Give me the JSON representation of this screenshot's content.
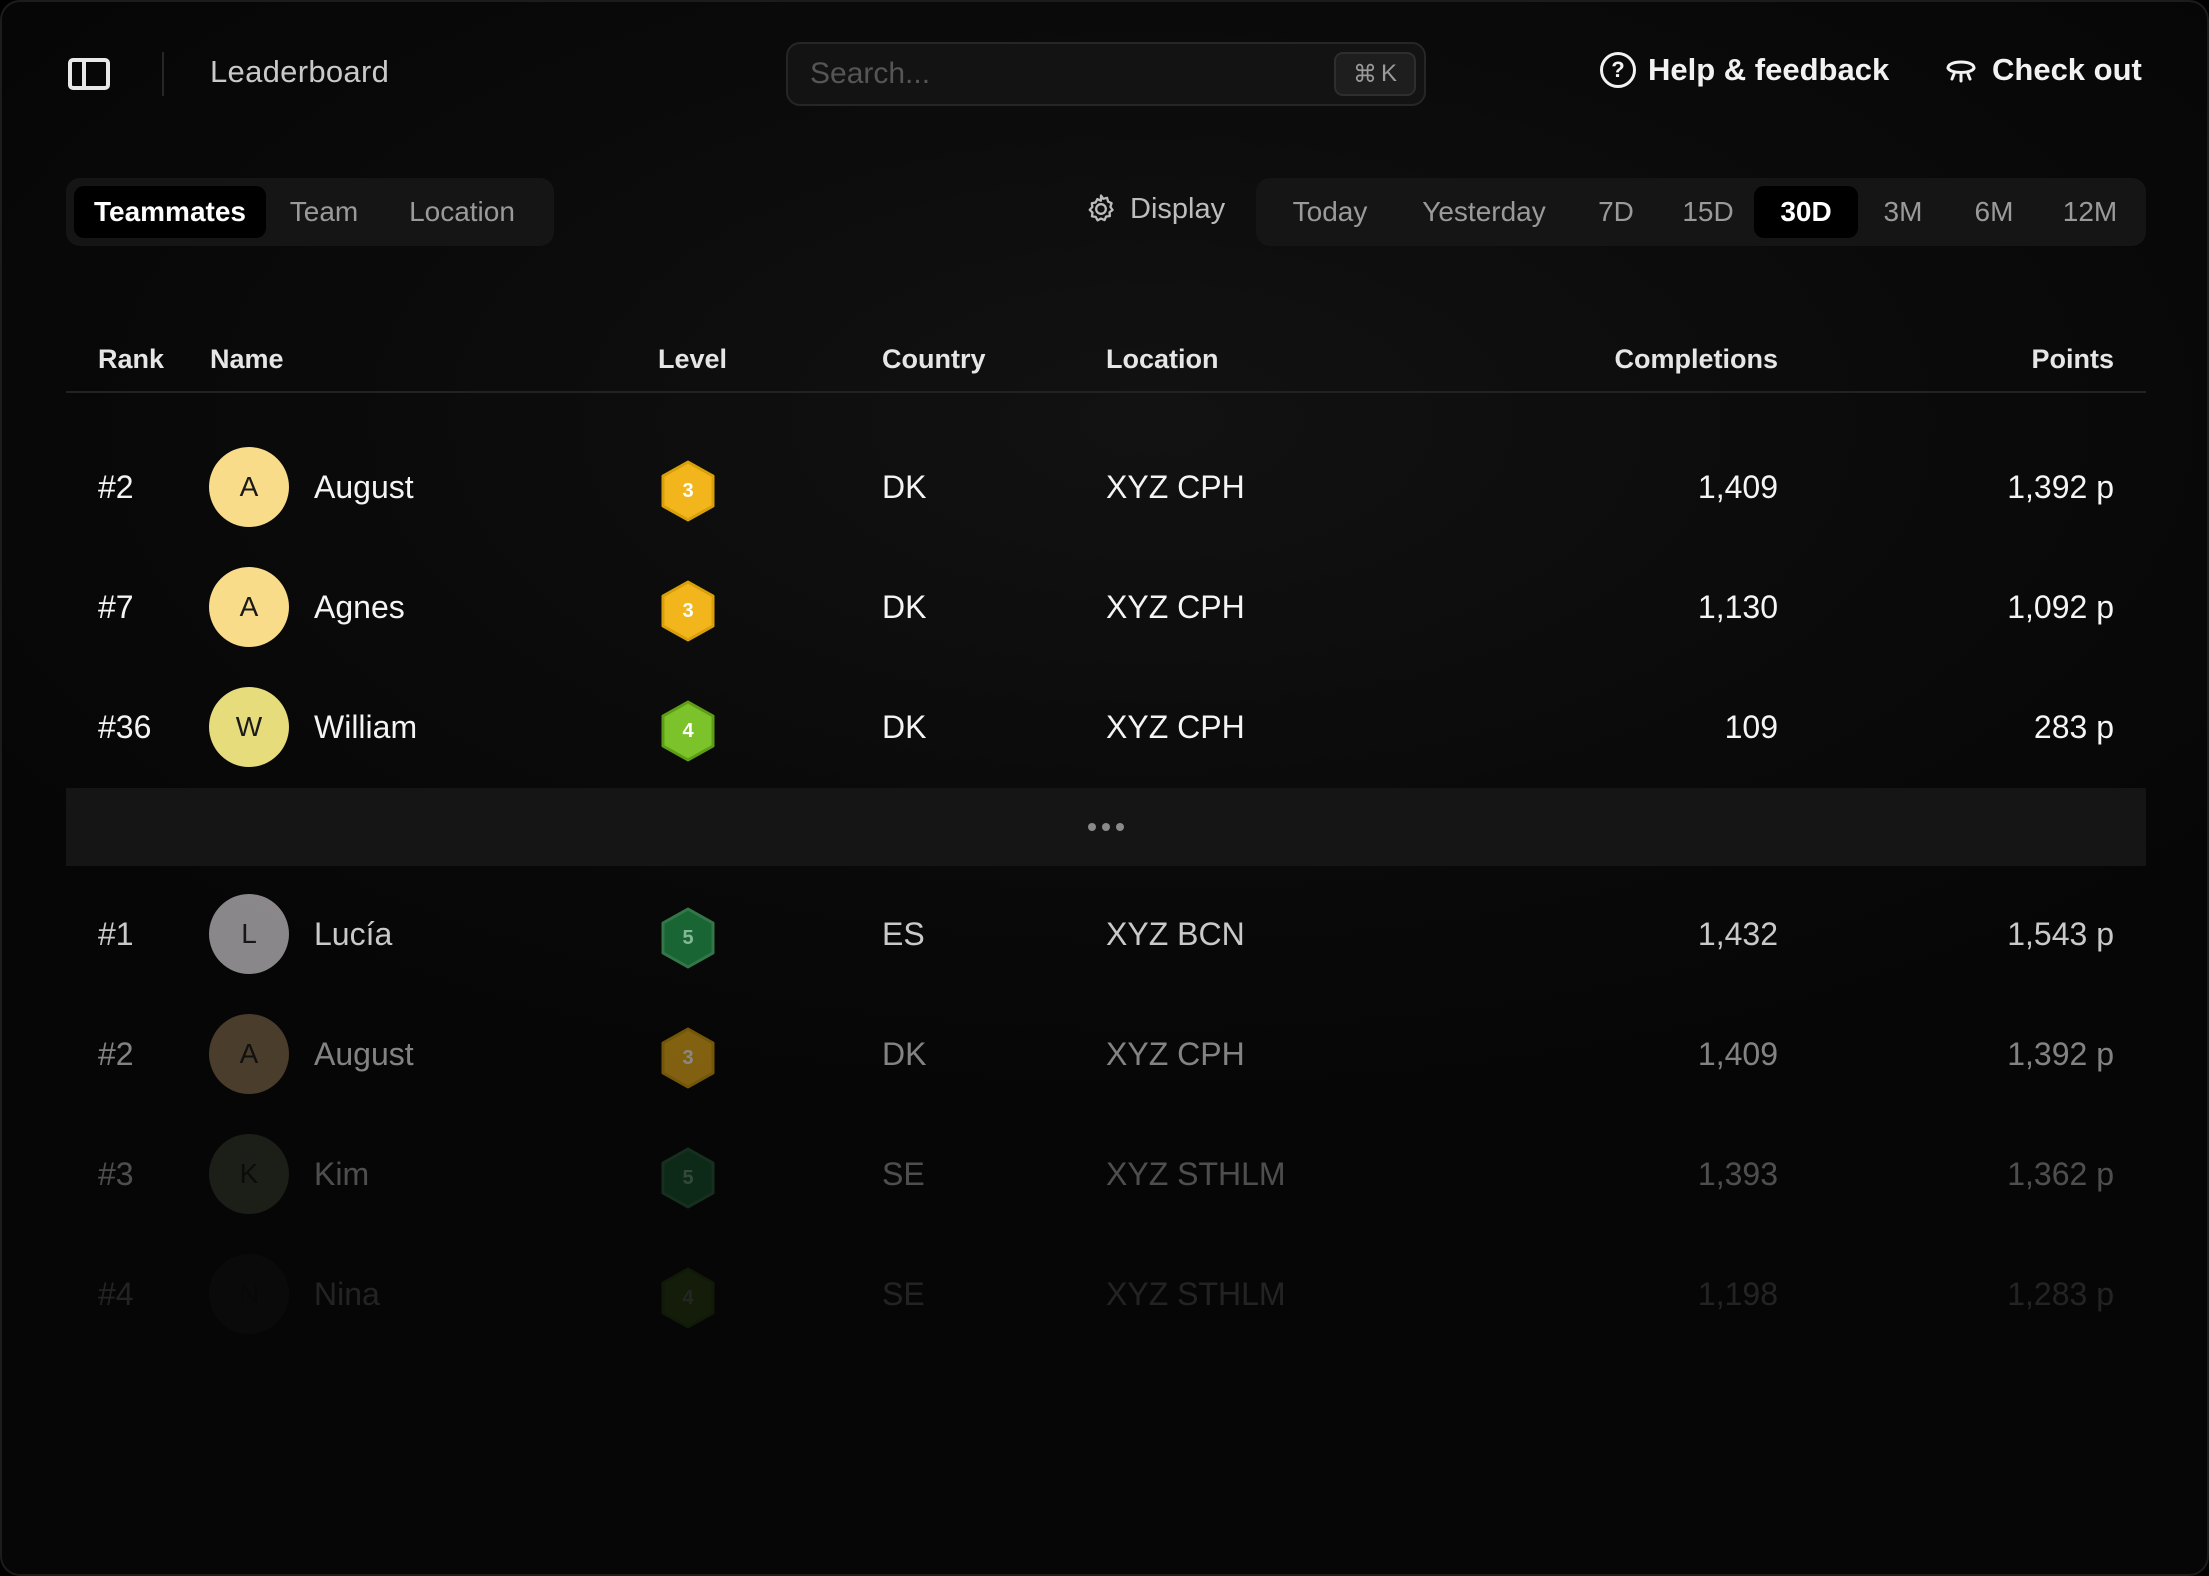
{
  "header": {
    "title": "Leaderboard",
    "search_placeholder": "Search...",
    "shortcut_symbol": "⌘",
    "shortcut_key": "K",
    "help_label": "Help & feedback",
    "checkout_label": "Check out"
  },
  "tabs": {
    "items": [
      "Teammates",
      "Team",
      "Location"
    ],
    "active": "Teammates"
  },
  "display_label": "Display",
  "ranges": {
    "items": [
      "Today",
      "Yesterday",
      "7D",
      "15D",
      "30D",
      "3M",
      "6M",
      "12M"
    ],
    "active": "30D"
  },
  "table": {
    "columns": {
      "rank": "Rank",
      "name": "Name",
      "level": "Level",
      "country": "Country",
      "location": "Location",
      "completions": "Completions",
      "points": "Points"
    },
    "top_rows": [
      {
        "rank": "#2",
        "initial": "A",
        "name": "August",
        "level": "3",
        "country": "DK",
        "location": "XYZ CPH",
        "completions": "1,409",
        "points": "1,392 p"
      },
      {
        "rank": "#7",
        "initial": "A",
        "name": "Agnes",
        "level": "3",
        "country": "DK",
        "location": "XYZ CPH",
        "completions": "1,130",
        "points": "1,092 p"
      },
      {
        "rank": "#36",
        "initial": "W",
        "name": "William",
        "level": "4",
        "country": "DK",
        "location": "XYZ CPH",
        "completions": "109",
        "points": "283 p"
      }
    ],
    "leader_rows": [
      {
        "rank": "#1",
        "initial": "L",
        "name": "Lucía",
        "level": "5",
        "country": "ES",
        "location": "XYZ BCN",
        "completions": "1,432",
        "points": "1,543 p"
      },
      {
        "rank": "#2",
        "initial": "A",
        "name": "August",
        "level": "3",
        "country": "DK",
        "location": "XYZ CPH",
        "completions": "1,409",
        "points": "1,392 p"
      },
      {
        "rank": "#3",
        "initial": "K",
        "name": "Kim",
        "level": "5",
        "country": "SE",
        "location": "XYZ STHLM",
        "completions": "1,393",
        "points": "1,362 p"
      },
      {
        "rank": "#4",
        "initial": "N",
        "name": "Nina",
        "level": "4",
        "country": "SE",
        "location": "XYZ STHLM",
        "completions": "1,198",
        "points": "1,283 p"
      }
    ]
  },
  "colors": {
    "level_3": "#f2b51c",
    "level_4": "#7cc22a",
    "level_5": "#1e7a3e",
    "avatar_yellow": "#f8dc8a",
    "avatar_olive": "#e6dc7c",
    "avatar_grey": "#a8a4a8",
    "avatar_brown": "#8a7050",
    "avatar_green": "#4e5a3e",
    "avatar_dark": "#2a2a2a"
  }
}
